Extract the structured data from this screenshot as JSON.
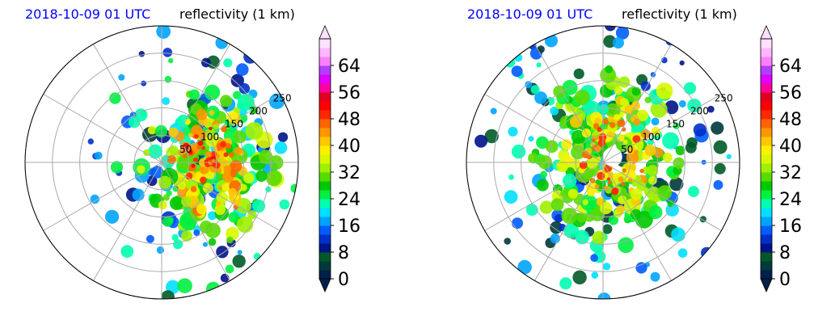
{
  "panels": [
    {
      "time_label": "2018-10-09 01 UTC",
      "var_label": "reflectivity (1 km)"
    },
    {
      "time_label": "2018-10-09 01 UTC",
      "var_label": "reflectivity (1 km)"
    }
  ],
  "colors": {
    "colormap": [
      "#00204c",
      "#003a3a",
      "#005a28",
      "#00138a",
      "#0030c8",
      "#005cff",
      "#00a4ff",
      "#00e0ff",
      "#00ffb0",
      "#00f040",
      "#00c800",
      "#58dc00",
      "#a0f000",
      "#d8f800",
      "#fff000",
      "#ffc800",
      "#ff9600",
      "#ff6400",
      "#ff2800",
      "#ff0000",
      "#e00020",
      "#ff00a0",
      "#e000ff",
      "#b040ff",
      "#ff80ff",
      "#ffb8ff",
      "#ffe0ff"
    ],
    "ring_color": "#aaaaaa"
  },
  "chart_data": [
    {
      "type": "radar_ppi",
      "variable": "reflectivity (1 km)",
      "range_rings": [
        50,
        100,
        150,
        200,
        250
      ],
      "range_max": 250,
      "colorbar": {
        "ticks": [
          "0",
          "8",
          "16",
          "24",
          "32",
          "40",
          "48",
          "56",
          "64"
        ],
        "vmin": 0,
        "vmax": 72,
        "extend": "both"
      },
      "storm": {
        "center_bearing_deg": 90,
        "center_range": 90,
        "peak_dbz": 52,
        "structure": "rain bands east of radar"
      }
    },
    {
      "type": "radar_ppi",
      "variable": "reflectivity (1 km)",
      "range_rings": [
        50,
        100,
        150,
        200,
        250
      ],
      "range_max": 250,
      "colorbar": {
        "ticks": [
          "0",
          "8",
          "16",
          "24",
          "32",
          "40",
          "48",
          "56",
          "64"
        ],
        "vmin": 0,
        "vmax": 72,
        "extend": "both"
      },
      "storm": {
        "center_bearing_deg": 60,
        "center_range": 20,
        "peak_dbz": 50,
        "structure": "hurricane eyewall with spiral bands"
      }
    }
  ]
}
